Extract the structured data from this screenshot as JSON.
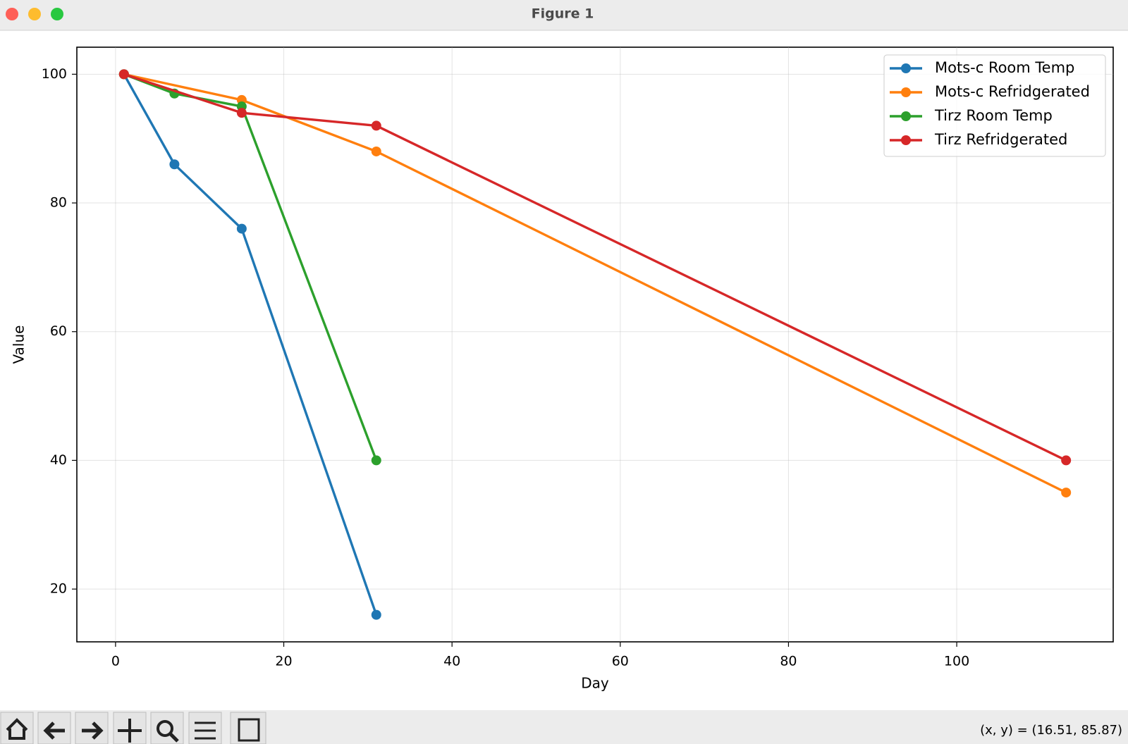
{
  "window": {
    "title": "Figure 1"
  },
  "chart_data": {
    "type": "line",
    "x_label": "Day",
    "y_label": "Value",
    "series": [
      {
        "name": "Mots-c Room Temp",
        "color": "#1f77b4",
        "x": [
          1,
          7,
          15,
          31
        ],
        "values": [
          100,
          86,
          76,
          16
        ]
      },
      {
        "name": "Mots-c Refridgerated",
        "color": "#ff7f0e",
        "x": [
          1,
          15,
          31,
          113
        ],
        "values": [
          100,
          96,
          88,
          35
        ]
      },
      {
        "name": "Tirz Room Temp",
        "color": "#2ca02c",
        "x": [
          1,
          7,
          15,
          31
        ],
        "values": [
          100,
          97,
          95,
          40
        ]
      },
      {
        "name": "Tirz Refridgerated",
        "color": "#d62728",
        "x": [
          1,
          15,
          31,
          113
        ],
        "values": [
          100,
          94,
          92,
          40
        ]
      }
    ],
    "xlim": [
      -4.6,
      118.6
    ],
    "xticks": [
      0,
      20,
      40,
      60,
      80,
      100
    ],
    "ylim": [
      11.8,
      104.2
    ],
    "yticks": [
      20,
      40,
      60,
      80,
      100
    ],
    "grid": true,
    "legend": "upper right"
  },
  "status_bar": {
    "coordinates": "(x, y) = (16.51, 85.87)"
  }
}
